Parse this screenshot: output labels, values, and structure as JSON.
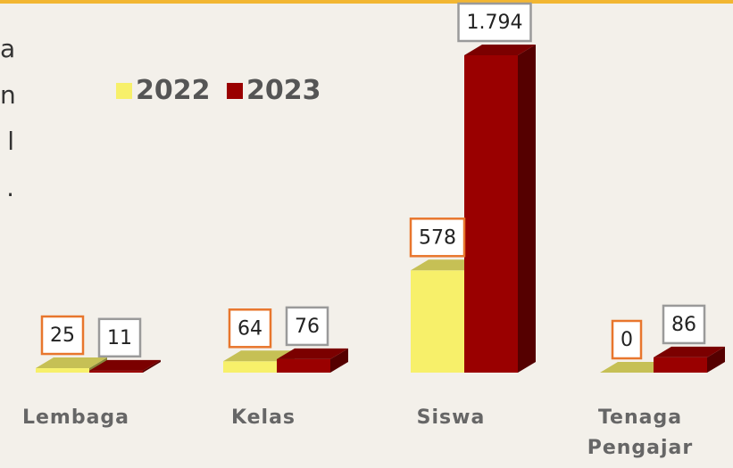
{
  "side_text": [
    "a",
    "n",
    "l",
    "."
  ],
  "chart_data": {
    "type": "bar3d",
    "categories": [
      "Lembaga",
      "Kelas",
      "Siswa",
      "Tenaga Pengajar"
    ],
    "series": [
      {
        "name": "2022",
        "color": "#f7f06a",
        "values": [
          25,
          64,
          578,
          0
        ]
      },
      {
        "name": "2023",
        "color": "#9a0000",
        "values": [
          11,
          76,
          1794,
          86
        ],
        "value_labels": [
          "11",
          "76",
          "1.794",
          "86"
        ]
      }
    ],
    "legend": "top-left"
  }
}
